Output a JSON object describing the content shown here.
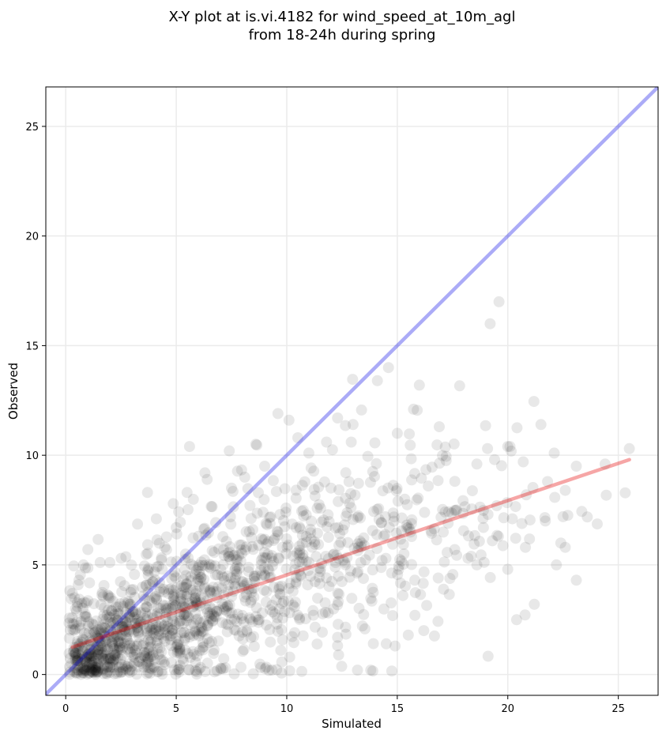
{
  "chart_data": {
    "type": "scatter",
    "title_lines": [
      "X-Y plot at is.vi.4182 for wind_speed_at_10m_agl",
      "from 18-24h during spring"
    ],
    "xlabel": "Simulated",
    "ylabel": "Observed",
    "xlim": [
      -0.9,
      26.8
    ],
    "ylim": [
      -0.95,
      26.8
    ],
    "xticks": [
      0,
      5,
      10,
      15,
      20,
      25
    ],
    "yticks": [
      0,
      5,
      10,
      15,
      20,
      25
    ],
    "grid": true,
    "colors": {
      "points": "#000000",
      "identity_line": "#0000e6",
      "fit_line": "#e60000",
      "grid": "#ebebeb",
      "frame": "#000000"
    },
    "point_opacity": 0.09,
    "identity_line": {
      "from": [
        -0.9,
        -0.9
      ],
      "to": [
        26.8,
        26.8
      ]
    },
    "fit_line": {
      "from": [
        0.3,
        1.25
      ],
      "to": [
        25.5,
        9.8
      ]
    },
    "cluster_model": [
      {
        "cx": 1.1,
        "cy": 0.6,
        "sx": 0.6,
        "sy": 0.6,
        "n": 150,
        "slope": 0
      },
      {
        "cx": 2.5,
        "cy": 1.8,
        "sx": 1.3,
        "sy": 1.0,
        "n": 250,
        "slope": 0
      },
      {
        "cx": 5.0,
        "cy": 2.8,
        "sx": 1.9,
        "sy": 1.6,
        "n": 330,
        "slope": 0.15
      },
      {
        "cx": 8.0,
        "cy": 4.0,
        "sx": 2.4,
        "sy": 2.0,
        "n": 320,
        "slope": 0.2
      },
      {
        "cx": 12.0,
        "cy": 5.6,
        "sx": 2.4,
        "sy": 2.3,
        "n": 210,
        "slope": 0.2
      },
      {
        "cx": 16.0,
        "cy": 6.8,
        "sx": 2.0,
        "sy": 2.4,
        "n": 90,
        "slope": 0.2
      },
      {
        "cx": 20.0,
        "cy": 7.6,
        "sx": 2.2,
        "sy": 2.1,
        "n": 35,
        "slope": 0.1
      }
    ],
    "points": [
      [
        19.2,
        16.0
      ],
      [
        19.6,
        17.0
      ],
      [
        14.1,
        13.4
      ],
      [
        16.0,
        13.2
      ],
      [
        14.6,
        14.0
      ],
      [
        9.6,
        11.9
      ],
      [
        10.1,
        11.6
      ],
      [
        12.3,
        11.7
      ],
      [
        13.0,
        11.4
      ],
      [
        15.0,
        11.0
      ],
      [
        16.9,
        11.3
      ],
      [
        21.5,
        11.4
      ],
      [
        20.0,
        10.4
      ],
      [
        20.1,
        10.4
      ],
      [
        22.1,
        10.1
      ],
      [
        25.5,
        10.3
      ],
      [
        24.4,
        9.6
      ],
      [
        23.1,
        9.5
      ],
      [
        22.6,
        8.4
      ],
      [
        21.8,
        8.8
      ],
      [
        20.7,
        9.7
      ],
      [
        19.4,
        9.8
      ],
      [
        18.6,
        9.6
      ],
      [
        10.5,
        10.8
      ],
      [
        11.0,
        10.1
      ],
      [
        11.8,
        10.6
      ],
      [
        8.6,
        10.5
      ],
      [
        7.4,
        10.2
      ],
      [
        5.6,
        10.4
      ],
      [
        22.5,
        7.2
      ],
      [
        21.7,
        7.0
      ],
      [
        22.4,
        6.0
      ],
      [
        22.6,
        5.8
      ],
      [
        20.8,
        5.8
      ],
      [
        20.0,
        4.8
      ],
      [
        21.2,
        3.2
      ],
      [
        23.1,
        4.3
      ],
      [
        20.4,
        2.5
      ],
      [
        22.2,
        5.0
      ],
      [
        19.3,
        6.1
      ],
      [
        18.6,
        5.0
      ],
      [
        19.5,
        7.7
      ],
      [
        18.2,
        5.3
      ],
      [
        17.6,
        5.7
      ],
      [
        17.3,
        6.9
      ],
      [
        16.2,
        2.0
      ],
      [
        15.5,
        1.8
      ],
      [
        14.5,
        1.4
      ],
      [
        13.2,
        0.2
      ],
      [
        13.8,
        0.2
      ],
      [
        14.9,
        1.3
      ],
      [
        15.8,
        2.7
      ],
      [
        3.7,
        8.3
      ],
      [
        5.0,
        6.7
      ],
      [
        0.8,
        5.0
      ],
      [
        1.0,
        5.7
      ],
      [
        0.3,
        3.7
      ],
      [
        0.4,
        3.5
      ],
      [
        0.6,
        4.3
      ],
      [
        7.5,
        8.5
      ],
      [
        8.1,
        9.0
      ],
      [
        9.0,
        9.5
      ],
      [
        6.3,
        9.2
      ],
      [
        6.4,
        8.9
      ],
      [
        4.1,
        7.1
      ]
    ],
    "generated_points": 1385,
    "seed": 4182
  }
}
